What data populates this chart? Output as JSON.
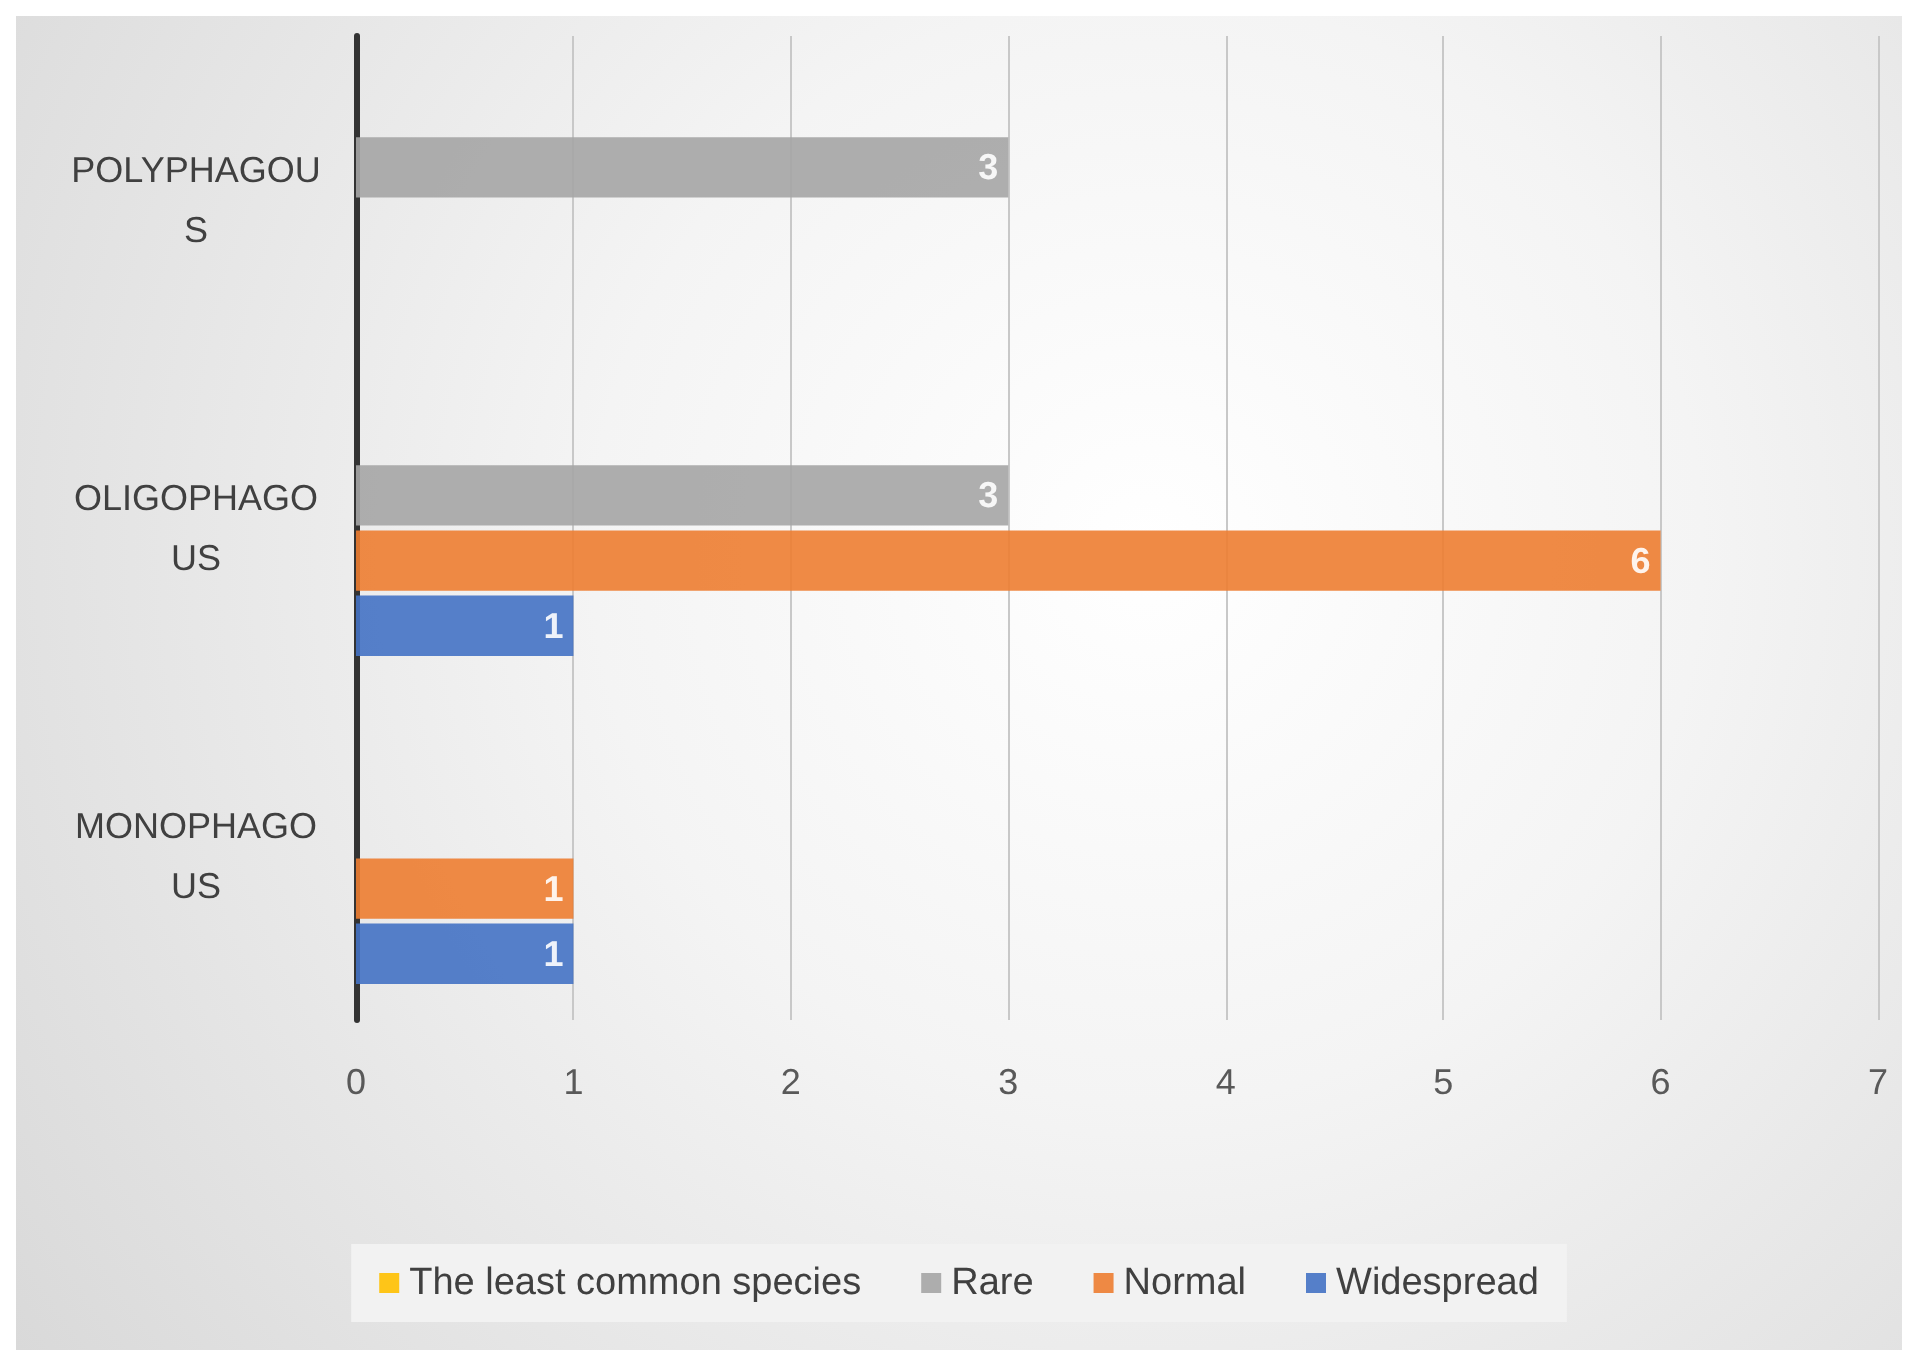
{
  "chart_data": {
    "type": "bar",
    "orientation": "horizontal",
    "categories": [
      "POLYPHAGOUS",
      "OLIGOPHAGOUS",
      "MONOPHAGOUS"
    ],
    "series": [
      {
        "name": "The least common species",
        "color": "#ffc000",
        "values": [
          null,
          null,
          null
        ]
      },
      {
        "name": "Rare",
        "color": "#a5a5a5",
        "values": [
          3,
          3,
          null
        ]
      },
      {
        "name": "Normal",
        "color": "#ed7d31",
        "values": [
          null,
          6,
          1
        ]
      },
      {
        "name": "Widespread",
        "color": "#4472c4",
        "values": [
          null,
          1,
          1
        ]
      }
    ],
    "xlim": [
      0,
      7
    ],
    "xticks": [
      0,
      1,
      2,
      3,
      4,
      5,
      6,
      7
    ],
    "grid": "x",
    "legend": "bottom",
    "data_labels": true
  }
}
